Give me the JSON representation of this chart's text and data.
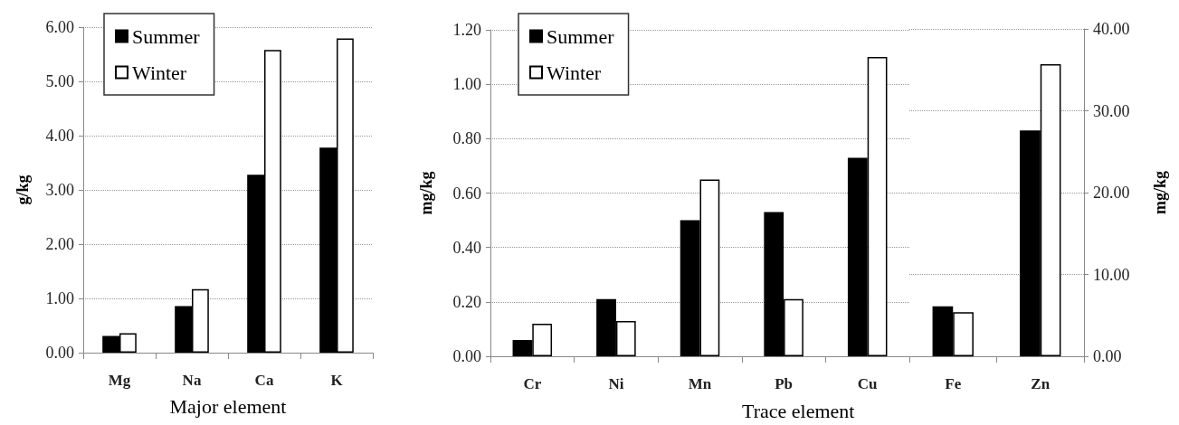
{
  "chart_data": [
    {
      "type": "bar",
      "xlabel": "Major element",
      "ylabel": "g/kg",
      "categories": [
        "Mg",
        "Na",
        "Ca",
        "K"
      ],
      "series": [
        {
          "name": "Summer",
          "color": "#000000",
          "values": [
            0.31,
            0.86,
            3.28,
            3.78
          ]
        },
        {
          "name": "Winter",
          "color": "#ffffff",
          "values": [
            0.36,
            1.17,
            5.58,
            5.79
          ]
        }
      ],
      "ylim": [
        0,
        6
      ],
      "yticks": [
        {
          "value": 0,
          "label": "0.00"
        },
        {
          "value": 1,
          "label": "1.00"
        },
        {
          "value": 2,
          "label": "2.00"
        },
        {
          "value": 3,
          "label": "3.00"
        },
        {
          "value": 4,
          "label": "4.00"
        },
        {
          "value": 5,
          "label": "5.00"
        },
        {
          "value": 6,
          "label": "6.00"
        }
      ],
      "grid": "y",
      "legend": "top left"
    },
    {
      "type": "bar",
      "xlabel": "Trace element",
      "ylabel": "mg/kg",
      "categories": [
        "Cr",
        "Ni",
        "Mn",
        "Pb",
        "Cu"
      ],
      "series": [
        {
          "name": "Summer",
          "color": "#000000",
          "values": [
            0.06,
            0.21,
            0.5,
            0.53,
            0.73
          ]
        },
        {
          "name": "Winter",
          "color": "#ffffff",
          "values": [
            0.12,
            0.13,
            0.65,
            0.21,
            1.1
          ]
        }
      ],
      "ylim": [
        0,
        1.2
      ],
      "yticks": [
        {
          "value": 0,
          "label": "0.00"
        },
        {
          "value": 0.2,
          "label": "0.20"
        },
        {
          "value": 0.4,
          "label": "0.40"
        },
        {
          "value": 0.6,
          "label": "0.60"
        },
        {
          "value": 0.8,
          "label": "0.80"
        },
        {
          "value": 1,
          "label": "1.00"
        },
        {
          "value": 1.2,
          "label": "1.20"
        }
      ],
      "grid": "y",
      "legend": "top left"
    },
    {
      "type": "bar",
      "y2label": "mg/kg",
      "categories": [
        "Fe",
        "Zn"
      ],
      "series": [
        {
          "color": "#000000",
          "axis": "y2",
          "values": [
            6.1,
            27.6
          ]
        },
        {
          "color": "#ffffff",
          "axis": "y2",
          "values": [
            5.4,
            35.7
          ]
        }
      ],
      "y2lim": [
        0,
        40
      ],
      "y2ticks": [
        {
          "value": 0,
          "label": "0.00"
        },
        {
          "value": 10,
          "label": "10.00"
        },
        {
          "value": 20,
          "label": "20.00"
        },
        {
          "value": 30,
          "label": "30.00"
        },
        {
          "value": 40,
          "label": "40.00"
        }
      ],
      "grid": "y"
    }
  ]
}
